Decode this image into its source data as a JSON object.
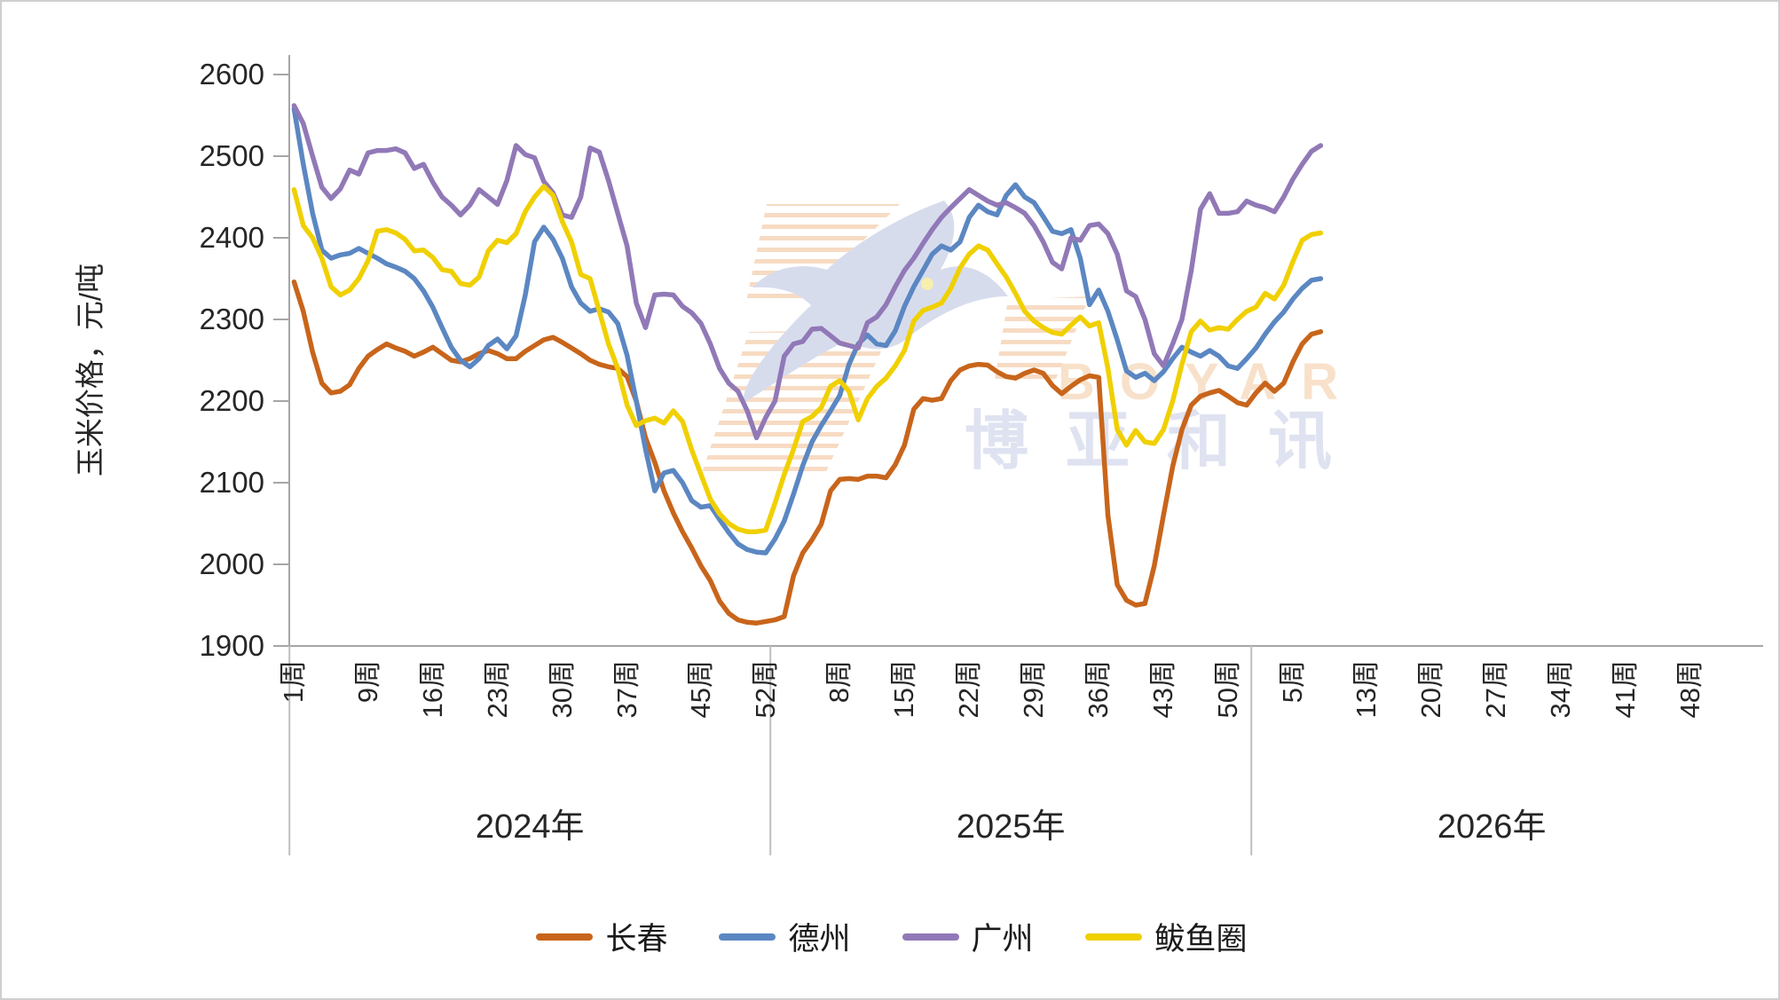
{
  "chart_data": {
    "type": "line",
    "title": "",
    "ylabel": "玉米价格，元/吨",
    "ylim": [
      1900,
      2600
    ],
    "y_ticks": [
      2600,
      2500,
      2400,
      2300,
      2200,
      2100,
      2000,
      1900
    ],
    "grid": "off",
    "legend_position": "bottom",
    "x_axis": {
      "unit_suffix": "周",
      "years": [
        {
          "label": "2024年",
          "weeks": 52,
          "tick_weeks": [
            1,
            9,
            16,
            23,
            30,
            37,
            45,
            52
          ]
        },
        {
          "label": "2025年",
          "weeks": 52,
          "tick_weeks": [
            8,
            15,
            22,
            29,
            36,
            43,
            50
          ]
        },
        {
          "label": "2026年",
          "weeks": 52,
          "tick_weeks": [
            5,
            13,
            20,
            27,
            34,
            41,
            48
          ]
        }
      ]
    },
    "series": [
      {
        "name": "长春",
        "color": "#C8651B",
        "values": [
          2346,
          2310,
          2260,
          2222,
          2210,
          2212,
          2220,
          2240,
          2255,
          2263,
          2270,
          2265,
          2261,
          2255,
          2260,
          2266,
          2258,
          2250,
          2248,
          2252,
          2258,
          2262,
          2258,
          2252,
          2252,
          2261,
          2268,
          2275,
          2278,
          2272,
          2265,
          2258,
          2250,
          2245,
          2242,
          2240,
          2230,
          2200,
          2155,
          2125,
          2090,
          2063,
          2040,
          2020,
          1998,
          1980,
          1955,
          1940,
          1932,
          1929,
          1928,
          1930,
          1932,
          1936,
          1986,
          2014,
          2030,
          2049,
          2090,
          2104,
          2105,
          2104,
          2108,
          2108,
          2106,
          2122,
          2146,
          2190,
          2203,
          2201,
          2203,
          2225,
          2238,
          2243,
          2245,
          2244,
          2236,
          2230,
          2228,
          2234,
          2238,
          2234,
          2219,
          2209,
          2218,
          2226,
          2231,
          2229,
          2060,
          1975,
          1956,
          1950,
          1952,
          1998,
          2060,
          2120,
          2165,
          2195,
          2206,
          2210,
          2213,
          2206,
          2198,
          2195,
          2210,
          2222,
          2212,
          2222,
          2248,
          2270,
          2282,
          2285
        ]
      },
      {
        "name": "德州",
        "color": "#5B87C2",
        "values": [
          2558,
          2490,
          2430,
          2385,
          2375,
          2379,
          2381,
          2387,
          2381,
          2375,
          2368,
          2364,
          2359,
          2350,
          2335,
          2315,
          2290,
          2266,
          2250,
          2242,
          2252,
          2268,
          2276,
          2264,
          2280,
          2330,
          2395,
          2413,
          2398,
          2375,
          2340,
          2320,
          2310,
          2313,
          2309,
          2295,
          2256,
          2200,
          2141,
          2090,
          2112,
          2115,
          2100,
          2078,
          2070,
          2072,
          2055,
          2039,
          2025,
          2018,
          2015,
          2014,
          2031,
          2053,
          2086,
          2121,
          2150,
          2170,
          2188,
          2207,
          2245,
          2270,
          2281,
          2270,
          2268,
          2286,
          2316,
          2340,
          2360,
          2380,
          2390,
          2385,
          2395,
          2425,
          2440,
          2432,
          2428,
          2452,
          2465,
          2450,
          2443,
          2426,
          2408,
          2405,
          2410,
          2375,
          2318,
          2336,
          2310,
          2275,
          2237,
          2229,
          2234,
          2225,
          2236,
          2252,
          2266,
          2260,
          2255,
          2262,
          2255,
          2243,
          2240,
          2252,
          2265,
          2282,
          2297,
          2309,
          2325,
          2338,
          2348,
          2350
        ]
      },
      {
        "name": "广州",
        "color": "#9179B7",
        "values": [
          2562,
          2540,
          2500,
          2462,
          2448,
          2460,
          2483,
          2478,
          2504,
          2507,
          2507,
          2509,
          2504,
          2485,
          2490,
          2468,
          2450,
          2440,
          2428,
          2440,
          2459,
          2450,
          2441,
          2470,
          2513,
          2502,
          2498,
          2469,
          2455,
          2428,
          2425,
          2450,
          2510,
          2505,
          2470,
          2430,
          2390,
          2320,
          2290,
          2330,
          2331,
          2330,
          2316,
          2308,
          2295,
          2270,
          2240,
          2222,
          2212,
          2188,
          2155,
          2180,
          2200,
          2255,
          2270,
          2273,
          2288,
          2289,
          2280,
          2271,
          2268,
          2265,
          2296,
          2303,
          2318,
          2340,
          2360,
          2375,
          2393,
          2410,
          2425,
          2437,
          2448,
          2459,
          2452,
          2445,
          2440,
          2443,
          2437,
          2430,
          2415,
          2395,
          2370,
          2362,
          2400,
          2397,
          2415,
          2417,
          2405,
          2380,
          2335,
          2328,
          2300,
          2258,
          2243,
          2270,
          2300,
          2360,
          2435,
          2454,
          2430,
          2430,
          2432,
          2445,
          2440,
          2437,
          2432,
          2450,
          2472,
          2490,
          2506,
          2513
        ]
      },
      {
        "name": "鲅鱼圈",
        "color": "#F0D000",
        "values": [
          2459,
          2415,
          2400,
          2375,
          2340,
          2330,
          2336,
          2350,
          2372,
          2408,
          2410,
          2406,
          2398,
          2384,
          2385,
          2376,
          2361,
          2359,
          2344,
          2342,
          2352,
          2384,
          2397,
          2394,
          2405,
          2432,
          2450,
          2463,
          2452,
          2420,
          2395,
          2355,
          2350,
          2310,
          2270,
          2240,
          2195,
          2170,
          2176,
          2179,
          2173,
          2188,
          2175,
          2140,
          2110,
          2080,
          2062,
          2050,
          2043,
          2040,
          2040,
          2042,
          2075,
          2110,
          2141,
          2175,
          2181,
          2192,
          2218,
          2225,
          2212,
          2177,
          2203,
          2218,
          2228,
          2243,
          2262,
          2298,
          2311,
          2315,
          2320,
          2338,
          2363,
          2380,
          2390,
          2385,
          2368,
          2352,
          2332,
          2310,
          2298,
          2290,
          2284,
          2282,
          2293,
          2303,
          2292,
          2296,
          2240,
          2165,
          2146,
          2164,
          2150,
          2148,
          2165,
          2200,
          2245,
          2285,
          2298,
          2287,
          2290,
          2288,
          2300,
          2310,
          2315,
          2332,
          2325,
          2342,
          2371,
          2397,
          2404,
          2406
        ]
      }
    ],
    "watermark": {
      "brand_en": "BOYAR",
      "brand_cn": "博亚和讯"
    },
    "colors": {
      "axis": "#A6A6A6",
      "tick_text": "#262626",
      "separator": "#BFBFBF",
      "watermark_blue": "#BCC4E0",
      "watermark_orange": "#F3C9A0"
    }
  }
}
